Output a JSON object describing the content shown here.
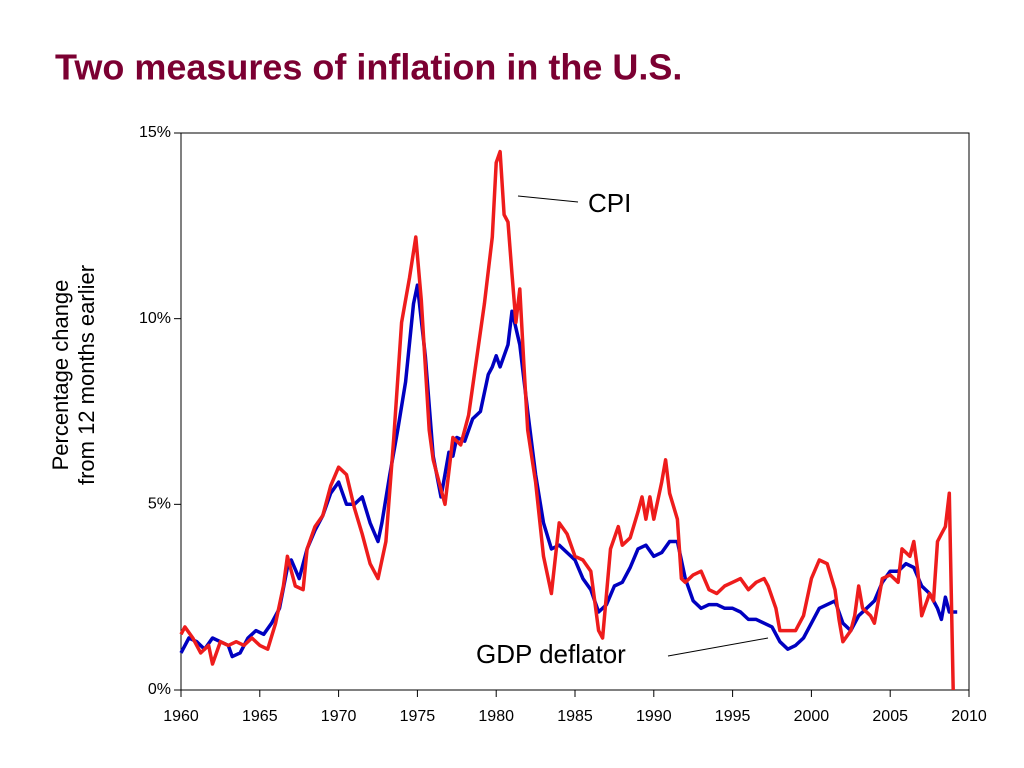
{
  "chart_data": {
    "type": "line",
    "title": "Two measures of inflation in the U.S.",
    "ylabel": [
      "Percentage change",
      "from 12 months earlier"
    ],
    "xlim": [
      1960,
      2010
    ],
    "xticks": [
      1960,
      1965,
      1970,
      1975,
      1980,
      1985,
      1990,
      1995,
      2000,
      2005,
      2010
    ],
    "ylim": [
      0,
      15
    ],
    "yticks": [
      {
        "value": 0,
        "label": "0%"
      },
      {
        "value": 5,
        "label": "5%"
      },
      {
        "value": 10,
        "label": "10%"
      },
      {
        "value": 15,
        "label": "15%"
      }
    ],
    "annotations": [
      {
        "text": "CPI"
      },
      {
        "text": "GDP deflator"
      }
    ],
    "series": [
      {
        "name": "CPI",
        "color": "#ee1c1c",
        "x": [
          1960.0,
          1960.25,
          1960.75,
          1961.25,
          1961.75,
          1962.0,
          1962.5,
          1963.0,
          1963.5,
          1964.0,
          1964.5,
          1965.0,
          1965.5,
          1966.0,
          1966.5,
          1966.75,
          1967.25,
          1967.75,
          1968.0,
          1968.5,
          1969.0,
          1969.5,
          1970.0,
          1970.5,
          1971.0,
          1971.5,
          1972.0,
          1972.5,
          1973.0,
          1973.5,
          1974.0,
          1974.5,
          1974.9,
          1975.25,
          1975.75,
          1976.0,
          1976.5,
          1976.75,
          1977.25,
          1977.75,
          1978.25,
          1978.75,
          1979.25,
          1979.75,
          1980.0,
          1980.25,
          1980.5,
          1980.75,
          1981.0,
          1981.25,
          1981.5,
          1981.75,
          1982.0,
          1982.5,
          1983.0,
          1983.5,
          1984.0,
          1984.5,
          1985.0,
          1985.5,
          1986.0,
          1986.5,
          1986.75,
          1987.25,
          1987.75,
          1988.0,
          1988.5,
          1989.0,
          1989.25,
          1989.5,
          1989.75,
          1990.0,
          1990.5,
          1990.75,
          1991.0,
          1991.5,
          1991.75,
          1992.0,
          1992.5,
          1993.0,
          1993.5,
          1994.0,
          1994.5,
          1995.0,
          1995.5,
          1996.0,
          1996.5,
          1997.0,
          1997.25,
          1997.75,
          1998.0,
          1998.5,
          1999.0,
          1999.5,
          2000.0,
          2000.5,
          2001.0,
          2001.5,
          2001.75,
          2002.0,
          2002.5,
          2002.75,
          2003.0,
          2003.25,
          2003.75,
          2004.0,
          2004.5,
          2005.0,
          2005.5,
          2005.75,
          2006.25,
          2006.5,
          2006.75,
          2007.0,
          2007.5,
          2007.75,
          2008.0,
          2008.25,
          2008.5,
          2008.75,
          2009.0
        ],
        "values": [
          1.5,
          1.7,
          1.4,
          1.0,
          1.2,
          0.7,
          1.3,
          1.2,
          1.3,
          1.2,
          1.4,
          1.2,
          1.1,
          1.8,
          2.8,
          3.6,
          2.8,
          2.7,
          3.8,
          4.4,
          4.7,
          5.5,
          6.0,
          5.8,
          4.9,
          4.2,
          3.4,
          3.0,
          4.0,
          6.8,
          9.9,
          11.1,
          12.2,
          10.5,
          7.0,
          6.2,
          5.4,
          5.0,
          6.8,
          6.6,
          7.4,
          8.9,
          10.4,
          12.2,
          14.2,
          14.5,
          12.8,
          12.6,
          11.2,
          9.9,
          10.8,
          8.8,
          7.0,
          5.6,
          3.6,
          2.6,
          4.5,
          4.2,
          3.6,
          3.5,
          3.2,
          1.6,
          1.4,
          3.8,
          4.4,
          3.9,
          4.1,
          4.8,
          5.2,
          4.6,
          5.2,
          4.6,
          5.6,
          6.2,
          5.3,
          4.6,
          3.0,
          2.9,
          3.1,
          3.2,
          2.7,
          2.6,
          2.8,
          2.9,
          3.0,
          2.7,
          2.9,
          3.0,
          2.8,
          2.2,
          1.6,
          1.6,
          1.6,
          2.0,
          3.0,
          3.5,
          3.4,
          2.7,
          1.9,
          1.3,
          1.6,
          2.0,
          2.8,
          2.2,
          2.0,
          1.8,
          3.0,
          3.1,
          2.9,
          3.8,
          3.6,
          4.0,
          3.2,
          2.0,
          2.6,
          2.4,
          4.0,
          4.2,
          4.4,
          5.3,
          0.0
        ]
      },
      {
        "name": "GDP deflator",
        "color": "#0000c0",
        "x": [
          1960.0,
          1960.5,
          1961.0,
          1961.5,
          1962.0,
          1962.5,
          1963.0,
          1963.25,
          1963.75,
          1964.25,
          1964.75,
          1965.25,
          1965.75,
          1966.25,
          1966.75,
          1967.0,
          1967.5,
          1968.0,
          1968.5,
          1969.0,
          1969.5,
          1970.0,
          1970.5,
          1971.0,
          1971.5,
          1972.0,
          1972.5,
          1972.75,
          1973.25,
          1973.75,
          1974.25,
          1974.75,
          1975.0,
          1975.5,
          1976.0,
          1976.5,
          1977.0,
          1977.25,
          1977.5,
          1978.0,
          1978.5,
          1979.0,
          1979.5,
          1979.75,
          1980.0,
          1980.25,
          1980.75,
          1981.0,
          1981.5,
          1982.0,
          1982.5,
          1983.0,
          1983.5,
          1984.0,
          1984.5,
          1985.0,
          1985.5,
          1986.0,
          1986.5,
          1987.0,
          1987.5,
          1988.0,
          1988.5,
          1989.0,
          1989.5,
          1990.0,
          1990.5,
          1991.0,
          1991.5,
          1992.0,
          1992.5,
          1993.0,
          1993.5,
          1994.0,
          1994.5,
          1995.0,
          1995.5,
          1996.0,
          1996.5,
          1997.0,
          1997.5,
          1998.0,
          1998.5,
          1999.0,
          1999.5,
          2000.0,
          2000.5,
          2001.0,
          2001.5,
          2002.0,
          2002.5,
          2003.0,
          2003.5,
          2004.0,
          2004.5,
          2005.0,
          2005.5,
          2006.0,
          2006.5,
          2007.0,
          2007.5,
          2008.0,
          2008.25,
          2008.5,
          2008.75,
          2009.25
        ],
        "values": [
          1.0,
          1.4,
          1.3,
          1.1,
          1.4,
          1.3,
          1.2,
          0.9,
          1.0,
          1.4,
          1.6,
          1.5,
          1.8,
          2.2,
          3.3,
          3.5,
          3.0,
          3.8,
          4.3,
          4.7,
          5.3,
          5.6,
          5.0,
          5.0,
          5.2,
          4.5,
          4.0,
          4.5,
          5.8,
          7.0,
          8.3,
          10.4,
          10.9,
          9.0,
          6.3,
          5.2,
          6.4,
          6.3,
          6.8,
          6.7,
          7.3,
          7.5,
          8.5,
          8.7,
          9.0,
          8.7,
          9.3,
          10.2,
          9.3,
          7.5,
          5.8,
          4.5,
          3.8,
          3.9,
          3.7,
          3.5,
          3.0,
          2.7,
          2.1,
          2.3,
          2.8,
          2.9,
          3.3,
          3.8,
          3.9,
          3.6,
          3.7,
          4.0,
          4.0,
          3.0,
          2.4,
          2.2,
          2.3,
          2.3,
          2.2,
          2.2,
          2.1,
          1.9,
          1.9,
          1.8,
          1.7,
          1.3,
          1.1,
          1.2,
          1.4,
          1.8,
          2.2,
          2.3,
          2.4,
          1.8,
          1.6,
          2.0,
          2.2,
          2.4,
          2.9,
          3.2,
          3.2,
          3.4,
          3.3,
          2.8,
          2.6,
          2.2,
          1.9,
          2.5,
          2.1,
          2.1
        ]
      }
    ]
  }
}
